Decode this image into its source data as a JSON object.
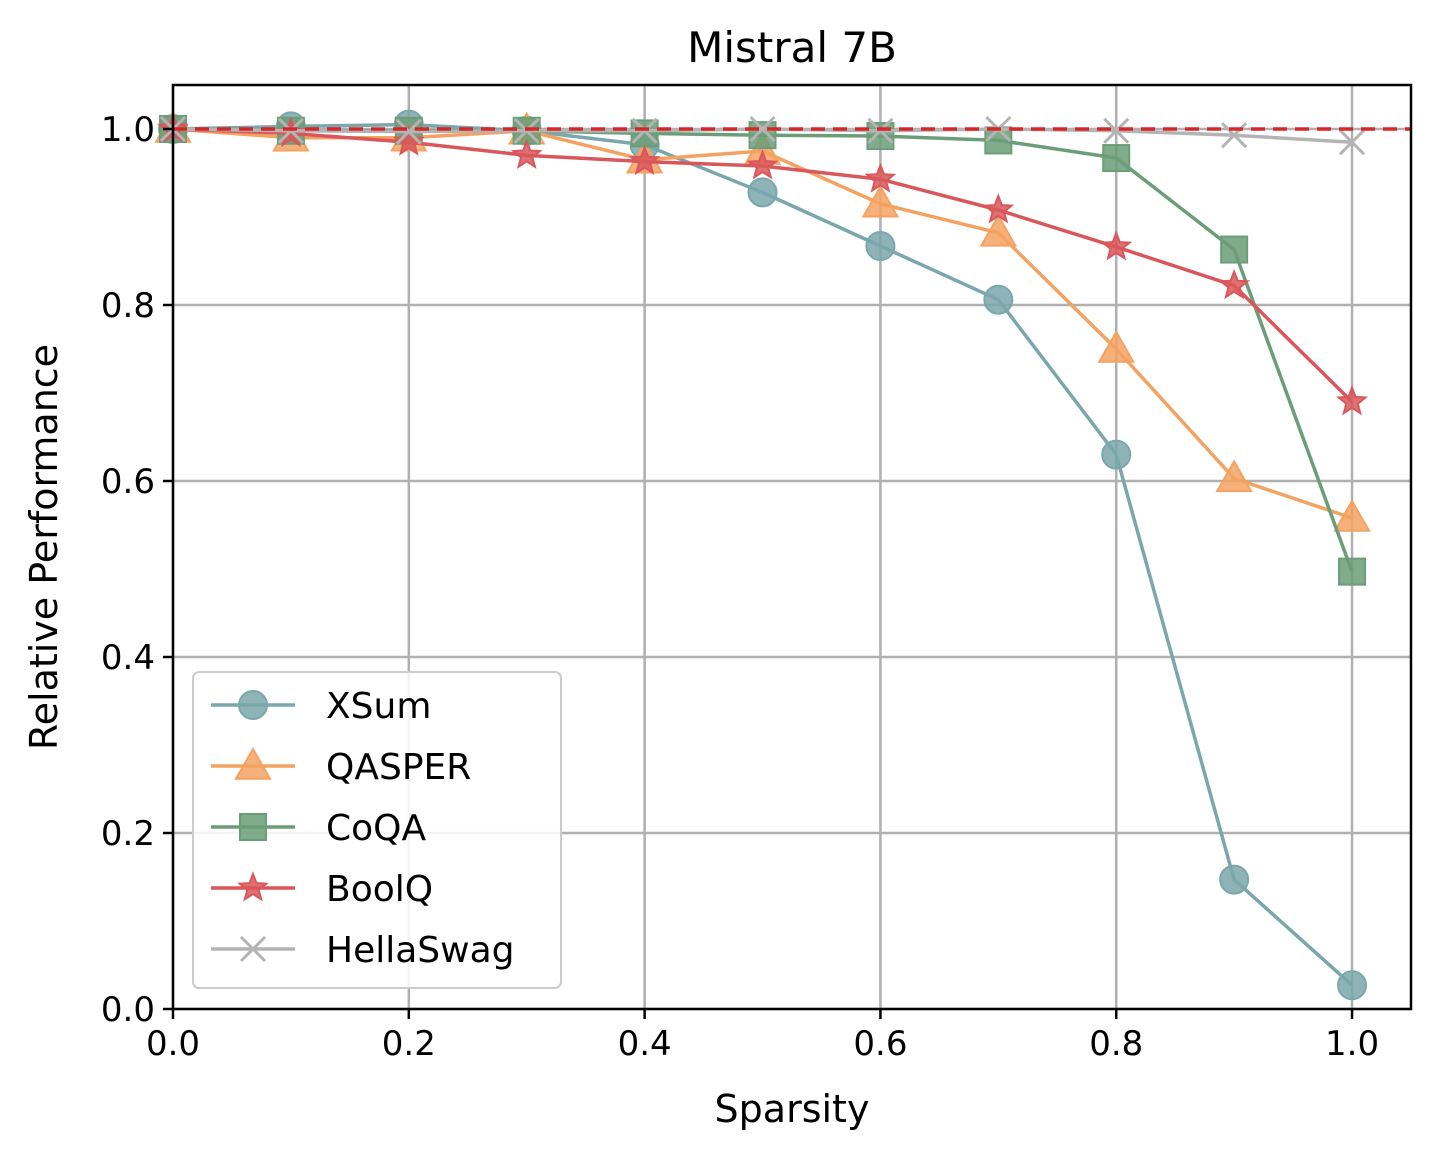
{
  "chart_data": {
    "type": "line",
    "title": "Mistral 7B",
    "xlabel": "Sparsity",
    "ylabel": "Relative Performance",
    "xlim": [
      0.0,
      1.05
    ],
    "ylim": [
      0.0,
      1.05
    ],
    "xticks": [
      "0.0",
      "0.2",
      "0.4",
      "0.6",
      "0.8",
      "1.0"
    ],
    "yticks": [
      "0.0",
      "0.2",
      "0.4",
      "0.6",
      "0.8",
      "1.0"
    ],
    "grid": true,
    "legend_position": "lower-left",
    "x": [
      0.0,
      0.1,
      0.2,
      0.3,
      0.4,
      0.5,
      0.6,
      0.7,
      0.8,
      0.9,
      1.0
    ],
    "reference_line": {
      "y": 1.0,
      "style": "dashed",
      "color": "#d62728"
    },
    "series": [
      {
        "name": "XSum",
        "marker": "circle",
        "color": "#7aa7ab",
        "values": [
          1.0,
          1.003,
          1.005,
          0.998,
          0.982,
          0.928,
          0.867,
          0.806,
          0.63,
          0.147,
          0.027
        ]
      },
      {
        "name": "QASPER",
        "marker": "triangle",
        "color": "#f4a261",
        "values": [
          1.0,
          0.99,
          0.99,
          0.998,
          0.965,
          0.975,
          0.915,
          0.882,
          0.75,
          0.603,
          0.558
        ]
      },
      {
        "name": "CoQA",
        "marker": "square",
        "color": "#6b9e78",
        "values": [
          1.0,
          0.998,
          0.998,
          0.998,
          0.995,
          0.993,
          0.992,
          0.987,
          0.967,
          0.863,
          0.497
        ]
      },
      {
        "name": "BoolQ",
        "marker": "star",
        "color": "#d9575b",
        "values": [
          1.0,
          0.995,
          0.985,
          0.97,
          0.963,
          0.958,
          0.943,
          0.908,
          0.866,
          0.822,
          0.69
        ]
      },
      {
        "name": "HellaSwag",
        "marker": "x",
        "color": "#b4b4b4",
        "values": [
          1.0,
          0.998,
          0.997,
          0.998,
          0.998,
          1.0,
          0.998,
          1.0,
          0.998,
          0.993,
          0.985
        ]
      }
    ]
  }
}
